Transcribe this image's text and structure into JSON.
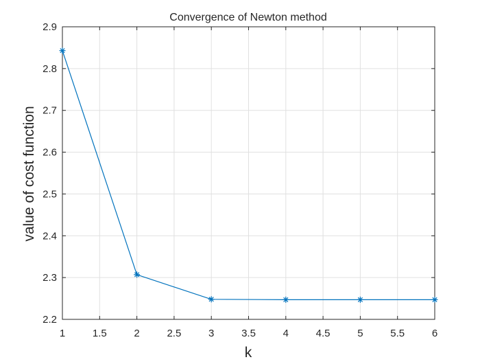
{
  "chart_data": {
    "type": "line",
    "title": "Convergence of Newton method",
    "xlabel": "k",
    "ylabel": "value of cost function",
    "xlim": [
      1,
      6
    ],
    "ylim": [
      2.2,
      2.9
    ],
    "xticks": [
      "1",
      "1.5",
      "2",
      "2.5",
      "3",
      "3.5",
      "4",
      "4.5",
      "5",
      "5.5",
      "6"
    ],
    "yticks": [
      "2.2",
      "2.3",
      "2.4",
      "2.5",
      "2.6",
      "2.7",
      "2.8",
      "2.9"
    ],
    "grid": true,
    "marker": "asterisk",
    "line_color": "#0072bd",
    "series": [
      {
        "x": [
          1,
          2,
          3,
          4,
          5,
          6
        ],
        "values": [
          2.843,
          2.307,
          2.248,
          2.247,
          2.247,
          2.247
        ]
      }
    ]
  }
}
